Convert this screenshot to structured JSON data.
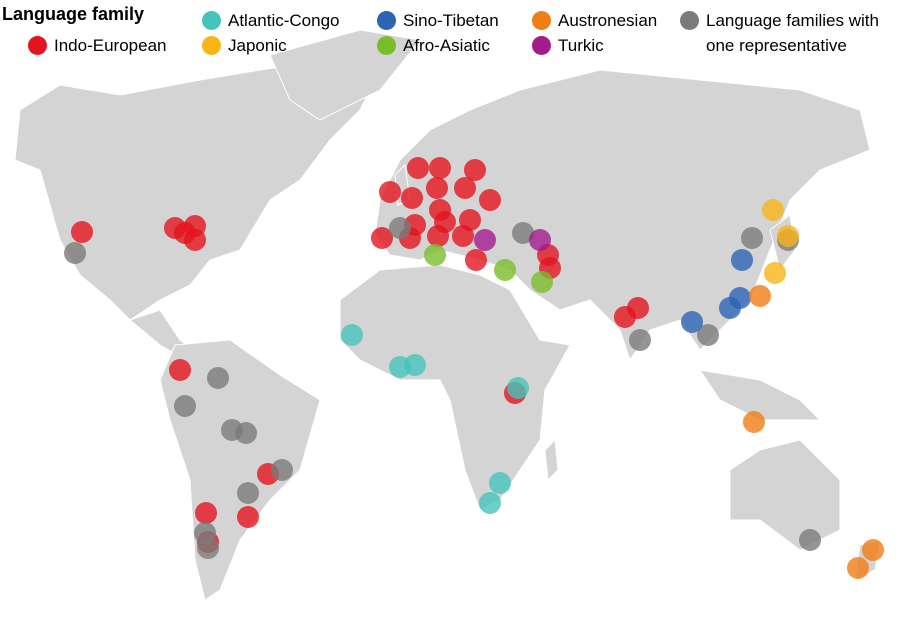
{
  "legend": {
    "title": "Language family",
    "items": [
      {
        "label": "Indo-European",
        "color": "#e3141f"
      },
      {
        "label": "Atlantic-Congo",
        "color": "#45c4bb"
      },
      {
        "label": "Japonic",
        "color": "#f9b416"
      },
      {
        "label": "Sino-Tibetan",
        "color": "#2c64b4"
      },
      {
        "label": "Afro-Asiatic",
        "color": "#79bd2a"
      },
      {
        "label": "Austronesian",
        "color": "#f07d16"
      },
      {
        "label": "Turkic",
        "color": "#a31c8c"
      },
      {
        "label": "Language families with one representative",
        "color": "#7b7b7b"
      }
    ]
  }
}
